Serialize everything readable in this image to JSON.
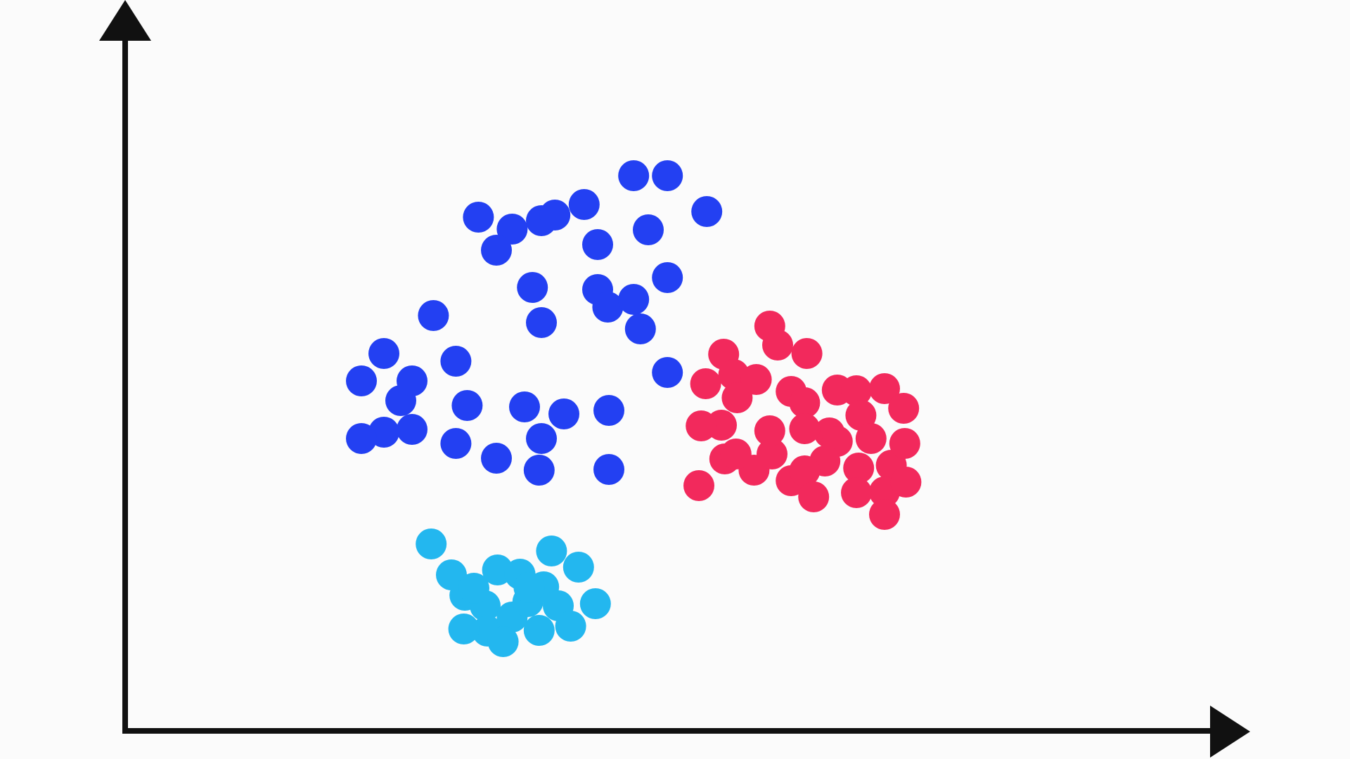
{
  "chart_data": {
    "type": "scatter",
    "title": "",
    "xlabel": "",
    "ylabel": "",
    "grid": false,
    "legend": "none",
    "xlim": [
      0,
      100
    ],
    "ylim": [
      0,
      100
    ],
    "series": [
      {
        "color": "#2340f2",
        "points": [
          [
            21.0,
            50.0
          ],
          [
            23.0,
            53.9
          ],
          [
            24.5,
            47.2
          ],
          [
            23.0,
            42.7
          ],
          [
            21.0,
            41.8
          ],
          [
            25.5,
            50.0
          ],
          [
            27.4,
            59.3
          ],
          [
            25.5,
            43.1
          ],
          [
            29.4,
            52.8
          ],
          [
            29.4,
            41.1
          ],
          [
            30.4,
            46.5
          ],
          [
            31.4,
            73.3
          ],
          [
            34.4,
            71.6
          ],
          [
            33.0,
            68.6
          ],
          [
            33.0,
            39.0
          ],
          [
            35.5,
            46.3
          ],
          [
            36.2,
            63.3
          ],
          [
            37.0,
            72.8
          ],
          [
            37.0,
            58.3
          ],
          [
            37.0,
            41.8
          ],
          [
            38.2,
            73.6
          ],
          [
            36.8,
            37.3
          ],
          [
            39.0,
            45.3
          ],
          [
            40.8,
            75.1
          ],
          [
            42.0,
            69.4
          ],
          [
            42.0,
            63.0
          ],
          [
            42.9,
            60.5
          ],
          [
            43.0,
            45.8
          ],
          [
            43.0,
            37.4
          ],
          [
            45.2,
            79.2
          ],
          [
            48.2,
            79.2
          ],
          [
            46.5,
            71.5
          ],
          [
            48.2,
            64.7
          ],
          [
            45.2,
            61.6
          ],
          [
            45.8,
            57.4
          ],
          [
            48.2,
            51.2
          ],
          [
            51.7,
            74.1
          ]
        ]
      },
      {
        "color": "#f2295c",
        "points": [
          [
            53.2,
            53.8
          ],
          [
            57.3,
            57.8
          ],
          [
            54.1,
            50.9
          ],
          [
            58.0,
            55.1
          ],
          [
            51.6,
            49.6
          ],
          [
            54.4,
            47.6
          ],
          [
            60.6,
            53.9
          ],
          [
            63.3,
            48.7
          ],
          [
            56.1,
            50.2
          ],
          [
            53.0,
            43.7
          ],
          [
            59.2,
            48.5
          ],
          [
            53.3,
            38.9
          ],
          [
            60.4,
            46.9
          ],
          [
            65.0,
            48.6
          ],
          [
            51.2,
            43.6
          ],
          [
            55.9,
            37.3
          ],
          [
            54.3,
            39.6
          ],
          [
            57.5,
            39.6
          ],
          [
            59.2,
            35.8
          ],
          [
            62.6,
            42.6
          ],
          [
            63.3,
            41.4
          ],
          [
            67.5,
            48.9
          ],
          [
            65.4,
            45.1
          ],
          [
            65.2,
            37.6
          ],
          [
            62.2,
            38.6
          ],
          [
            68.1,
            38.0
          ],
          [
            69.3,
            41.1
          ],
          [
            67.5,
            34.2
          ],
          [
            65.0,
            34.1
          ],
          [
            51.0,
            35.1
          ],
          [
            57.3,
            42.9
          ],
          [
            60.4,
            37.2
          ],
          [
            66.3,
            41.8
          ],
          [
            69.2,
            46.1
          ],
          [
            67.5,
            31.0
          ],
          [
            61.2,
            33.5
          ],
          [
            60.4,
            43.2
          ],
          [
            69.4,
            35.6
          ]
        ]
      },
      {
        "color": "#23b7ef",
        "points": [
          [
            27.2,
            26.8
          ],
          [
            29.0,
            22.4
          ],
          [
            30.2,
            19.5
          ],
          [
            32.0,
            18.0
          ],
          [
            33.1,
            23.1
          ],
          [
            31.0,
            20.5
          ],
          [
            32.2,
            14.4
          ],
          [
            34.4,
            16.4
          ],
          [
            35.8,
            18.6
          ],
          [
            35.1,
            22.5
          ],
          [
            37.2,
            20.7
          ],
          [
            38.5,
            18.0
          ],
          [
            39.6,
            15.1
          ],
          [
            40.3,
            23.5
          ],
          [
            41.8,
            18.3
          ],
          [
            35.9,
            20.6
          ],
          [
            36.8,
            14.5
          ],
          [
            33.6,
            12.9
          ],
          [
            30.1,
            14.7
          ],
          [
            37.9,
            25.8
          ]
        ]
      }
    ]
  }
}
